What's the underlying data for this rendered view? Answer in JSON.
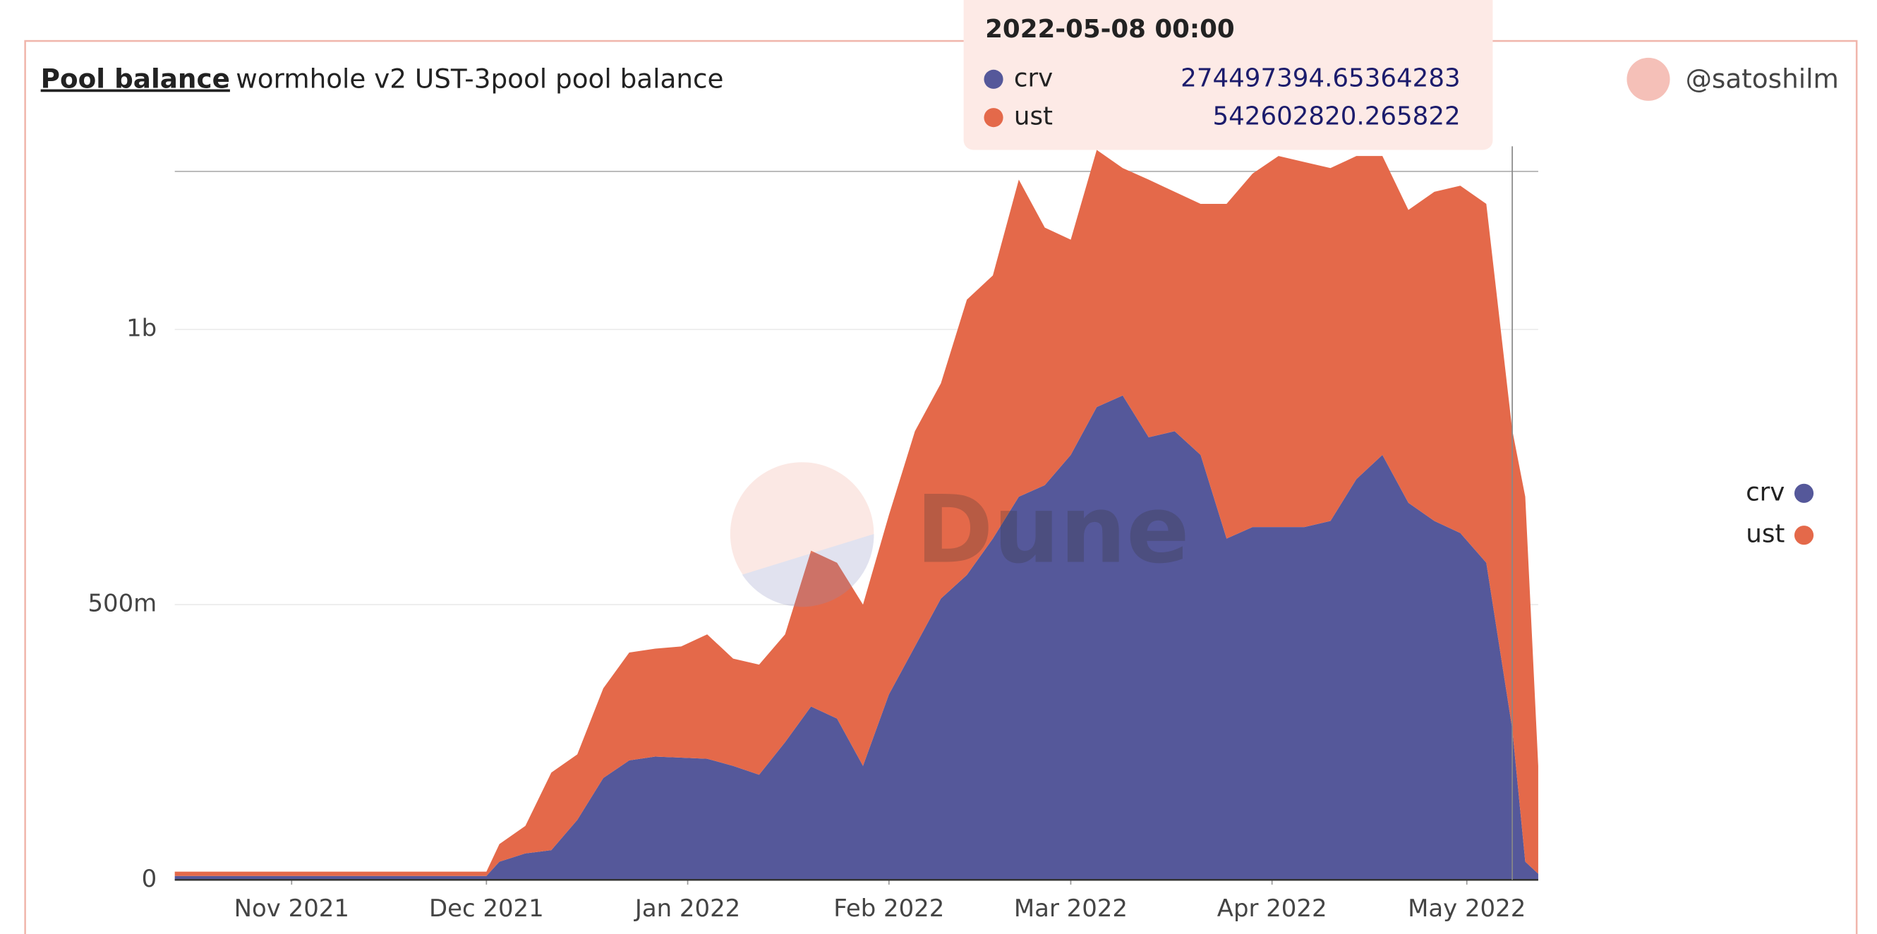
{
  "chart_data": {
    "type": "stacked_area",
    "title": "Pool balance",
    "subtitle": "wormhole v2 UST-3pool pool balance",
    "author": "@satoshilm",
    "watermark": "Dune",
    "x": [
      "2021-10-14",
      "2021-10-18",
      "2021-10-22",
      "2021-10-26",
      "2021-10-30",
      "2021-11-03",
      "2021-11-07",
      "2021-11-11",
      "2021-11-15",
      "2021-11-19",
      "2021-11-23",
      "2021-11-27",
      "2021-12-01",
      "2021-12-03",
      "2021-12-07",
      "2021-12-11",
      "2021-12-15",
      "2021-12-19",
      "2021-12-23",
      "2021-12-27",
      "2021-12-31",
      "2022-01-04",
      "2022-01-08",
      "2022-01-12",
      "2022-01-16",
      "2022-01-20",
      "2022-01-24",
      "2022-01-28",
      "2022-02-01",
      "2022-02-05",
      "2022-02-09",
      "2022-02-13",
      "2022-02-17",
      "2022-02-21",
      "2022-02-25",
      "2022-03-01",
      "2022-03-05",
      "2022-03-09",
      "2022-03-13",
      "2022-03-17",
      "2022-03-21",
      "2022-03-25",
      "2022-03-29",
      "2022-04-02",
      "2022-04-06",
      "2022-04-10",
      "2022-04-14",
      "2022-04-18",
      "2022-04-22",
      "2022-04-26",
      "2022-04-30",
      "2022-05-04",
      "2022-05-08",
      "2022-05-10",
      "2022-05-12"
    ],
    "series": [
      {
        "name": "crv",
        "color": "#55589a",
        "values": [
          7000000,
          7000000,
          7000000,
          7000000,
          7000000,
          7000000,
          7000000,
          7000000,
          7000000,
          7000000,
          7000000,
          7000000,
          7000000,
          33000000,
          48000000,
          54000000,
          109000000,
          185000000,
          217000000,
          224000000,
          222000000,
          220000000,
          207000000,
          191000000,
          250000000,
          315000000,
          293000000,
          207000000,
          337000000,
          424000000,
          511000000,
          554000000,
          620000000,
          696000000,
          717000000,
          772000000,
          859000000,
          880000000,
          804000000,
          815000000,
          772000000,
          620000000,
          641000000,
          641000000,
          641000000,
          652000000,
          728000000,
          772000000,
          685000000,
          652000000,
          630000000,
          576000000,
          274497394.65364283,
          33000000,
          11000000
        ]
      },
      {
        "name": "ust",
        "color": "#e4694a",
        "values": [
          8000000,
          8000000,
          8000000,
          8000000,
          8000000,
          8000000,
          8000000,
          8000000,
          8000000,
          8000000,
          8000000,
          8000000,
          8000000,
          32000000,
          50000000,
          141000000,
          119000000,
          163000000,
          196000000,
          196000000,
          202000000,
          226000000,
          195000000,
          200000000,
          196000000,
          283000000,
          283000000,
          293000000,
          326000000,
          391000000,
          391000000,
          500000000,
          478000000,
          576000000,
          468000000,
          391000000,
          467000000,
          413000000,
          468000000,
          435000000,
          456000000,
          608000000,
          642000000,
          674000000,
          663000000,
          641000000,
          587000000,
          543000000,
          532000000,
          598000000,
          631000000,
          652000000,
          542602820.265822,
          663000000,
          196000000
        ]
      }
    ],
    "xlim": [
      "2021-10-14",
      "2022-05-12"
    ],
    "xticks": [
      {
        "value": "2021-11-01",
        "label": "Nov 2021"
      },
      {
        "value": "2021-12-01",
        "label": "Dec 2021"
      },
      {
        "value": "2022-01-01",
        "label": "Jan 2022"
      },
      {
        "value": "2022-02-01",
        "label": "Feb 2022"
      },
      {
        "value": "2022-03-01",
        "label": "Mar 2022"
      },
      {
        "value": "2022-04-01",
        "label": "Apr 2022"
      },
      {
        "value": "2022-05-01",
        "label": "May 2022"
      }
    ],
    "ylim": [
      0,
      1287000000
    ],
    "yticks": [
      0,
      {
        "value": 500000000,
        "label": "500m"
      },
      {
        "value": 1000000000,
        "label": "1b"
      }
    ],
    "grid": true,
    "legend": "right",
    "tooltip": {
      "title": "2022-05-08 00:00",
      "x": "2022-05-08",
      "items": [
        {
          "name": "crv",
          "value": "274497394.65364283"
        },
        {
          "name": "ust",
          "value": "542602820.265822"
        }
      ]
    }
  }
}
